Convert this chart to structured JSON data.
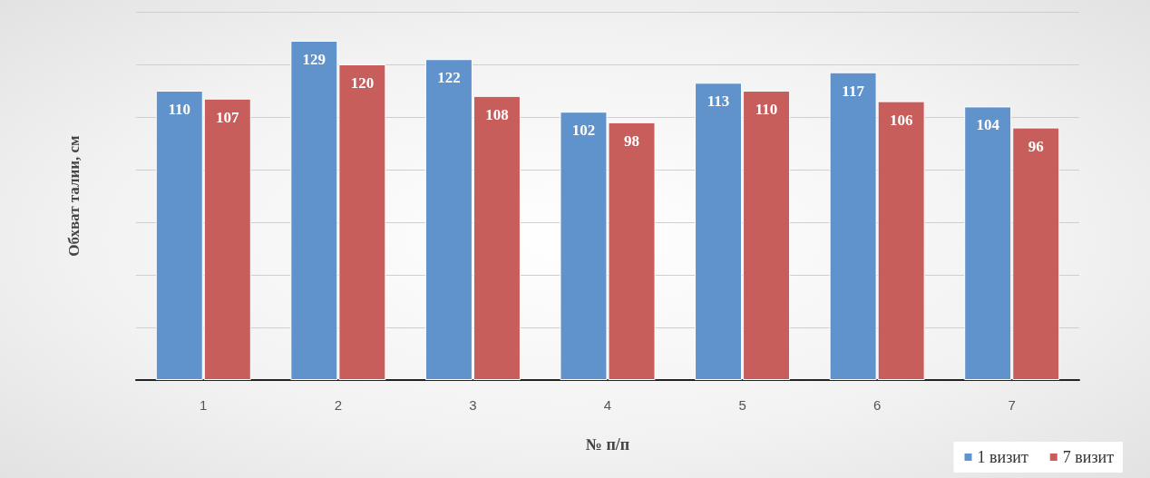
{
  "chart_data": {
    "type": "bar",
    "xlabel": "№ п/п",
    "ylabel": "Обхват талии, см",
    "categories": [
      "1",
      "2",
      "3",
      "4",
      "5",
      "6",
      "7"
    ],
    "series": [
      {
        "name": "1 визит",
        "color": "#6092cb",
        "values": [
          110,
          129,
          122,
          102,
          113,
          117,
          104
        ]
      },
      {
        "name": "7 визит",
        "color": "#c85e5b",
        "values": [
          107,
          120,
          108,
          98,
          110,
          106,
          96
        ]
      }
    ],
    "ylim": [
      0,
      140
    ],
    "yticks": [
      {
        "value": 0,
        "label": null
      },
      {
        "value": 20,
        "label": null
      },
      {
        "value": 40,
        "label": null
      },
      {
        "value": 60,
        "label": null
      },
      {
        "value": 80,
        "label": null
      },
      {
        "value": 100,
        "label": null
      },
      {
        "value": 120,
        "label": null
      },
      {
        "value": 140,
        "label": null
      }
    ],
    "grid": "y",
    "legend": "bottom right",
    "data_labels": true,
    "tick_labels": "x"
  }
}
